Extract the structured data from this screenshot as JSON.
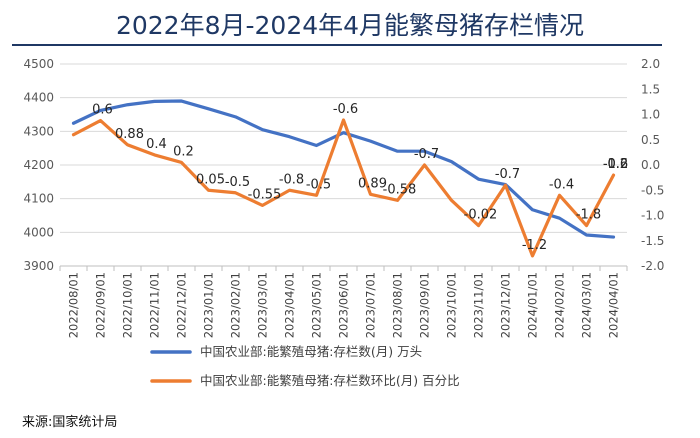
{
  "page": {
    "title": "2022年8月-2024年4月能繁母猪存栏情况",
    "source": "来源:国家统计局"
  },
  "colors": {
    "series1": "#4472c4",
    "series2": "#ed7d31",
    "grid": "#d9d9d9",
    "title": "#1f3864"
  },
  "chart_data": {
    "type": "line",
    "title": "2022年8月-2024年4月能繁母猪存栏情况",
    "grid": true,
    "legend_placement": "bottom",
    "x": [
      "2022/08/01",
      "2022/09/01",
      "2022/10/01",
      "2022/11/01",
      "2022/12/01",
      "2023/01/01",
      "2023/02/01",
      "2023/03/01",
      "2023/04/01",
      "2023/05/01",
      "2023/06/01",
      "2023/07/01",
      "2023/08/01",
      "2023/09/01",
      "2023/10/01",
      "2023/11/01",
      "2023/12/01",
      "2024/01/01",
      "2024/02/01",
      "2024/03/01",
      "2024/04/01"
    ],
    "y_left": {
      "ylim": [
        3900,
        4500
      ],
      "ticks": [
        "4500",
        "4400",
        "4300",
        "4200",
        "4100",
        "4000",
        "3900"
      ]
    },
    "y_right": {
      "ylim": [
        -2.0,
        2.0
      ],
      "ticks": [
        "2.0",
        "1.5",
        "1.0",
        "0.5",
        "0.0",
        "-0.5",
        "-1.0",
        "-1.5",
        "-2.0"
      ]
    },
    "series": [
      {
        "name": "中国农业部:能繁殖母猪:存栏数(月) 万头",
        "axis": "left",
        "values": [
          4324,
          4362,
          4379,
          4389,
          4390,
          4367,
          4343,
          4305,
          4284,
          4258,
          4296,
          4271,
          4241,
          4241,
          4210,
          4158,
          4142,
          4067,
          4042,
          3992,
          3986
        ]
      },
      {
        "name": "中国农业部:能繁殖母猪:存栏数环比(月) 百分比",
        "axis": "right",
        "values": [
          0.6,
          0.88,
          0.4,
          0.2,
          0.05,
          -0.5,
          -0.55,
          -0.8,
          -0.5,
          -0.6,
          0.89,
          -0.58,
          -0.7,
          0.0,
          -0.7,
          -1.2,
          -0.4,
          -1.8,
          -0.6,
          -1.2,
          -0.2
        ],
        "labels": [
          {
            "i": 1,
            "text": "0.6"
          },
          {
            "i": 2,
            "text": "0.88"
          },
          {
            "i": 3,
            "text": "0.4"
          },
          {
            "i": 4,
            "text": "0.2"
          },
          {
            "i": 5,
            "text": "0.05"
          },
          {
            "i": 6,
            "text": "-0.5"
          },
          {
            "i": 7,
            "text": "-0.55"
          },
          {
            "i": 8,
            "text": "-0.8"
          },
          {
            "i": 9,
            "text": "-0.5"
          },
          {
            "i": 10,
            "text": "-0.6"
          },
          {
            "i": 11,
            "text": "0.89"
          },
          {
            "i": 12,
            "text": "-0.58"
          },
          {
            "i": 13,
            "text": "-0.7"
          },
          {
            "i": 15,
            "text": "-0.02"
          },
          {
            "i": 16,
            "text": "-0.7"
          },
          {
            "i": 17,
            "text": "-1.2"
          },
          {
            "i": 18,
            "text": "-0.4"
          },
          {
            "i": 19,
            "text": "-1.8"
          },
          {
            "i": 20,
            "text": "-0.6"
          },
          {
            "i": 21,
            "text": "-1.2"
          },
          {
            "i": 22,
            "text": "-0.2"
          }
        ]
      }
    ]
  }
}
